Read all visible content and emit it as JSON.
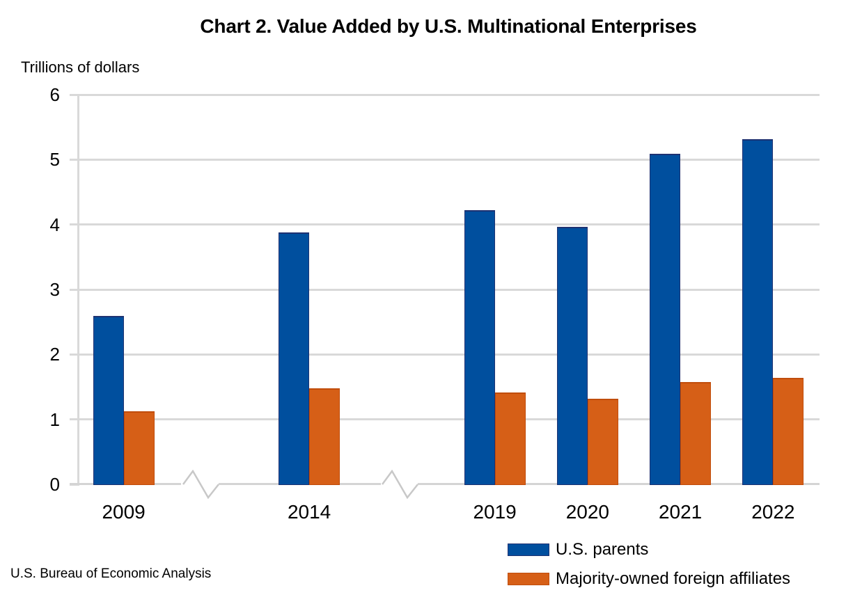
{
  "chart_data": {
    "type": "bar",
    "title": "Chart 2. Value Added by U.S. Multinational Enterprises",
    "units_label": "Trillions of dollars",
    "source": "U.S. Bureau of Economic Analysis",
    "categories": [
      "2009",
      "2014",
      "2019",
      "2020",
      "2021",
      "2022"
    ],
    "series": [
      {
        "name": "U.S. parents",
        "color": "#004F9E",
        "border_color": "#1E3272",
        "values": [
          2.59,
          3.88,
          4.22,
          3.96,
          5.09,
          5.31
        ]
      },
      {
        "name": "Majority-owned foreign affiliates",
        "color": "#D65F17",
        "border_color": "#C04D0C",
        "values": [
          1.13,
          1.48,
          1.41,
          1.32,
          1.57,
          1.64
        ]
      }
    ],
    "xlabel": "",
    "ylabel": "",
    "ylim": [
      0,
      6
    ],
    "yticks": [
      0,
      1,
      2,
      3,
      4,
      5,
      6
    ],
    "grid": "horizontal",
    "grid_color": "#D9D9D9",
    "legend_position": "bottom-right",
    "x_axis_breaks": [
      "between 2009 and 2014",
      "between 2014 and 2019"
    ],
    "background_color": "#FFFFFF",
    "text_color": "#000000"
  }
}
